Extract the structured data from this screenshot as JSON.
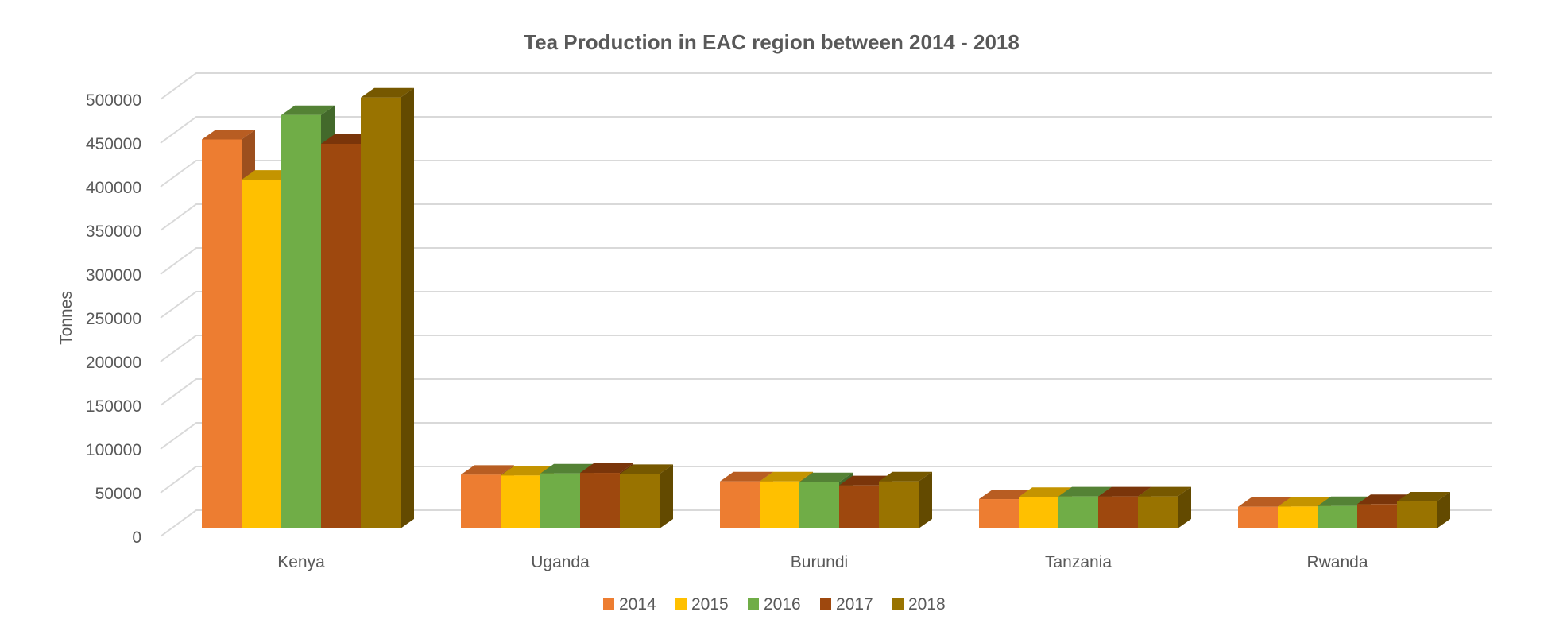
{
  "chart_data": {
    "type": "bar",
    "style": "3d-clustered-column",
    "title": "Tea Production in EAC region between 2014 - 2018",
    "xlabel": "",
    "ylabel": "Tonnes",
    "ylim": [
      0,
      500000
    ],
    "yticks": [
      0,
      50000,
      100000,
      150000,
      200000,
      250000,
      300000,
      350000,
      400000,
      450000,
      500000
    ],
    "ytick_labels": [
      "0",
      "50000",
      "100000",
      "150000",
      "200000",
      "250000",
      "300000",
      "350000",
      "400000",
      "450000",
      "500000"
    ],
    "grid": true,
    "legend_position": "bottom",
    "categories": [
      "Kenya",
      "Uganda",
      "Burundi",
      "Tanzania",
      "Rwanda"
    ],
    "series": [
      {
        "name": "2014",
        "color": "#ED7D31",
        "top": "#B85D22",
        "side": "#9C4F1E",
        "values": [
          445000,
          61500,
          53900,
          33600,
          24800
        ]
      },
      {
        "name": "2015",
        "color": "#FFC000",
        "top": "#C49400",
        "side": "#A37C00",
        "values": [
          399000,
          60600,
          53900,
          36100,
          25100
        ]
      },
      {
        "name": "2016",
        "color": "#70AD47",
        "top": "#548235",
        "side": "#43692B",
        "values": [
          473000,
          63000,
          53000,
          36700,
          25700
        ]
      },
      {
        "name": "2017",
        "color": "#9E480E",
        "top": "#7A350A",
        "side": "#6A300A",
        "values": [
          440000,
          63600,
          49400,
          36700,
          27900
        ]
      },
      {
        "name": "2018",
        "color": "#997300",
        "top": "#765800",
        "side": "#634A00",
        "values": [
          493000,
          62400,
          53900,
          36700,
          30900
        ]
      }
    ]
  }
}
